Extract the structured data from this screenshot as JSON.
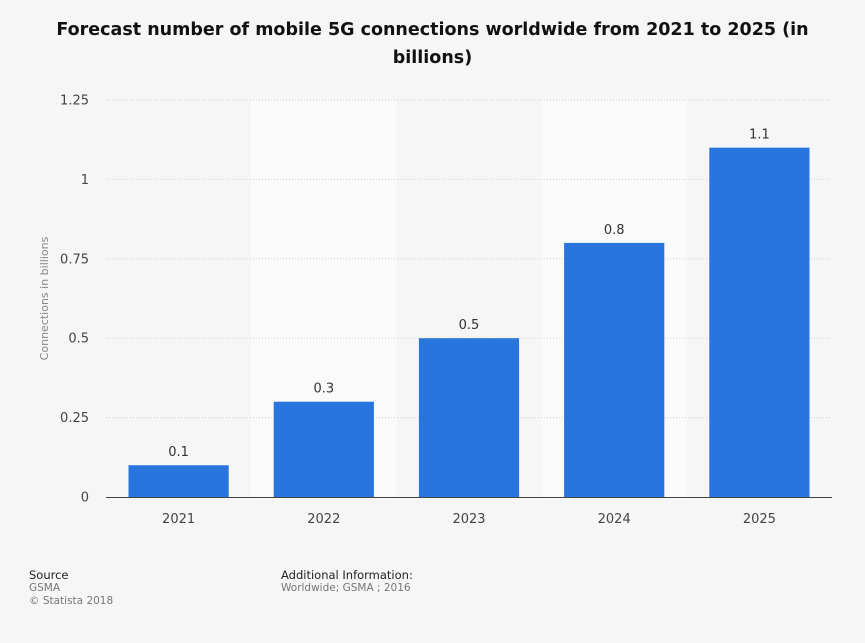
{
  "chart_data": {
    "type": "bar",
    "title": "Forecast number of mobile 5G connections worldwide from 2021 to 2025 (in billions)",
    "xlabel": "",
    "ylabel": "Connections in billions",
    "categories": [
      "2021",
      "2022",
      "2023",
      "2024",
      "2025"
    ],
    "values": [
      0.1,
      0.3,
      0.5,
      0.8,
      1.1
    ],
    "value_labels": [
      "0.1",
      "0.3",
      "0.5",
      "0.8",
      "1.1"
    ],
    "ylim": [
      0,
      1.25
    ],
    "yticks": [
      0,
      0.25,
      0.5,
      0.75,
      1,
      1.25
    ],
    "ytick_labels": [
      "0",
      "0.25",
      "0.5",
      "0.75",
      "1",
      "1.25"
    ],
    "grid": true,
    "legend": "none",
    "bar_color": "#2775dd",
    "band_color": "#fafafa"
  },
  "footer": {
    "source_heading": "Source",
    "source_lines": [
      "GSMA",
      "© Statista 2018"
    ],
    "info_heading": "Additional Information:",
    "info_lines": [
      "Worldwide; GSMA ; 2016"
    ]
  }
}
